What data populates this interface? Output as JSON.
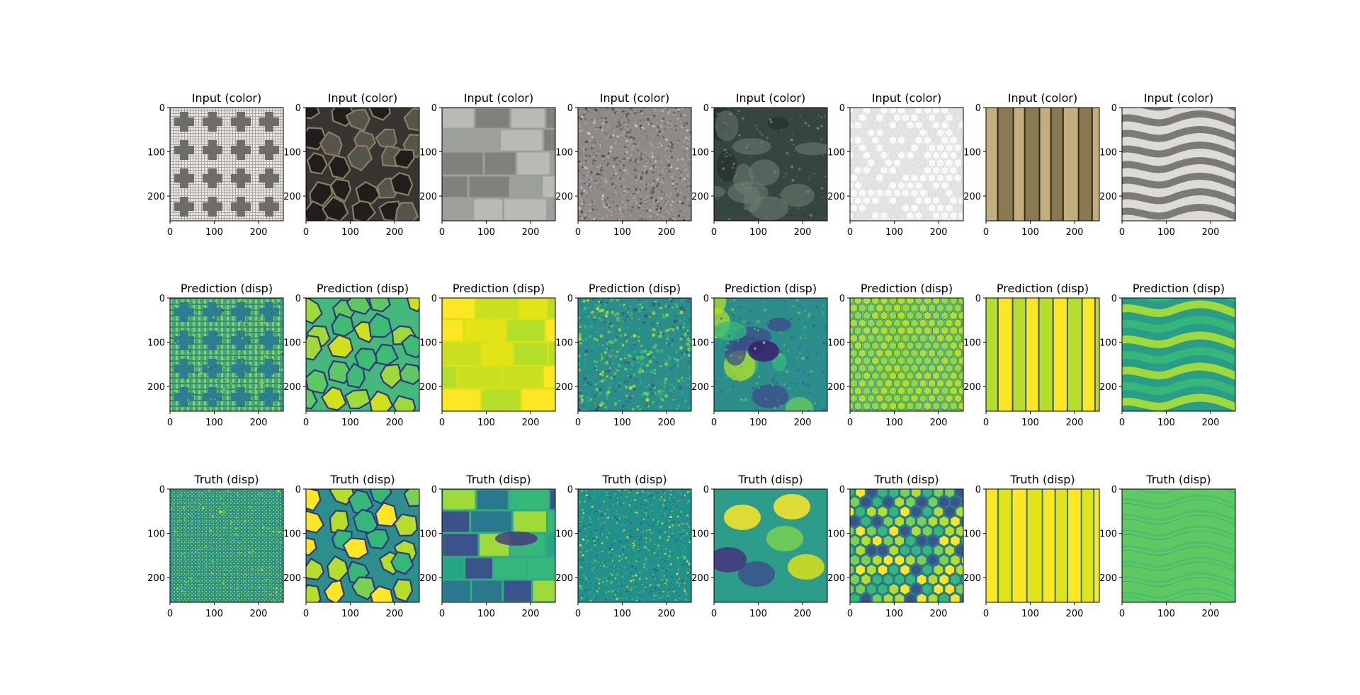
{
  "chart_data": {
    "type": "image-grid",
    "rows": [
      {
        "panel_title": "Input (color)",
        "images": [
          {
            "texture": "cross-tile",
            "palette": "color"
          },
          {
            "texture": "cracked-stone",
            "palette": "color"
          },
          {
            "texture": "stone-blocks",
            "palette": "color"
          },
          {
            "texture": "gravel",
            "palette": "color"
          },
          {
            "texture": "mossy-rock",
            "palette": "color"
          },
          {
            "texture": "white-hex",
            "palette": "color"
          },
          {
            "texture": "wood-planks",
            "palette": "color"
          },
          {
            "texture": "waves",
            "palette": "color"
          }
        ]
      },
      {
        "panel_title": "Prediction (disp)",
        "images": [
          {
            "texture": "cross-tile",
            "palette": "viridis"
          },
          {
            "texture": "cracked-stone",
            "palette": "viridis"
          },
          {
            "texture": "stone-blocks",
            "palette": "viridis"
          },
          {
            "texture": "gravel",
            "palette": "viridis"
          },
          {
            "texture": "mossy-rock",
            "palette": "viridis"
          },
          {
            "texture": "white-hex",
            "palette": "viridis"
          },
          {
            "texture": "wood-planks",
            "palette": "viridis"
          },
          {
            "texture": "waves",
            "palette": "viridis"
          }
        ]
      },
      {
        "panel_title": "Truth (disp)",
        "images": [
          {
            "texture": "cross-tile",
            "palette": "viridis"
          },
          {
            "texture": "cracked-stone",
            "palette": "viridis"
          },
          {
            "texture": "stone-blocks",
            "palette": "viridis"
          },
          {
            "texture": "gravel",
            "palette": "viridis"
          },
          {
            "texture": "mossy-rock",
            "palette": "viridis"
          },
          {
            "texture": "white-hex",
            "palette": "viridis"
          },
          {
            "texture": "wood-planks",
            "palette": "viridis"
          },
          {
            "texture": "waves",
            "palette": "viridis"
          }
        ]
      }
    ],
    "x_ticks": [
      "0",
      "100",
      "200"
    ],
    "y_ticks": [
      "0",
      "100",
      "200"
    ],
    "xlim": [
      0,
      256
    ],
    "ylim": [
      256,
      0
    ],
    "grid": false
  }
}
